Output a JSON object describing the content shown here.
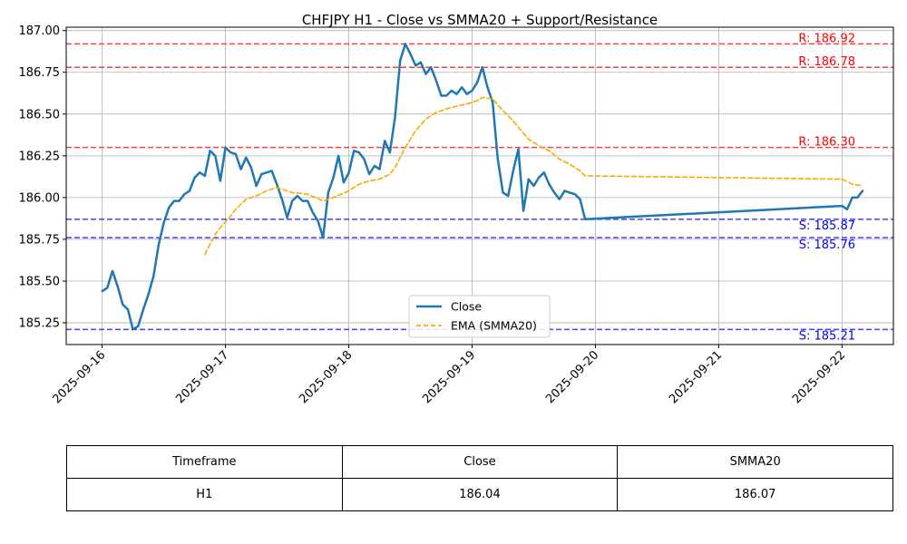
{
  "chart_data": {
    "type": "line",
    "title": "CHFJPY H1 - Close vs SMMA20 + Support/Resistance",
    "xlabel": "",
    "ylabel": "",
    "ylim": [
      185.12,
      187.02
    ],
    "xlim": [
      "2025-09-15T17:00",
      "2025-09-22T10:00"
    ],
    "x_ticks": [
      "2025-09-16",
      "2025-09-17",
      "2025-09-18",
      "2025-09-19",
      "2025-09-20",
      "2025-09-21",
      "2025-09-22"
    ],
    "y_ticks": [
      "185.25",
      "185.50",
      "185.75",
      "186.00",
      "186.25",
      "186.50",
      "186.75",
      "187.00"
    ],
    "grid": true,
    "legend_position": "lower-center",
    "series": [
      {
        "name": "Close",
        "color": "#1f77b4",
        "style": "solid",
        "points": [
          [
            "2025-09-16T00:00",
            185.44
          ],
          [
            "2025-09-16T01:00",
            185.46
          ],
          [
            "2025-09-16T02:00",
            185.56
          ],
          [
            "2025-09-16T03:00",
            185.47
          ],
          [
            "2025-09-16T04:00",
            185.36
          ],
          [
            "2025-09-16T05:00",
            185.33
          ],
          [
            "2025-09-16T06:00",
            185.21
          ],
          [
            "2025-09-16T07:00",
            185.23
          ],
          [
            "2025-09-16T08:00",
            185.33
          ],
          [
            "2025-09-16T09:00",
            185.42
          ],
          [
            "2025-09-16T10:00",
            185.53
          ],
          [
            "2025-09-16T11:00",
            185.72
          ],
          [
            "2025-09-16T12:00",
            185.85
          ],
          [
            "2025-09-16T13:00",
            185.94
          ],
          [
            "2025-09-16T14:00",
            185.98
          ],
          [
            "2025-09-16T15:00",
            185.98
          ],
          [
            "2025-09-16T16:00",
            186.02
          ],
          [
            "2025-09-16T17:00",
            186.04
          ],
          [
            "2025-09-16T18:00",
            186.12
          ],
          [
            "2025-09-16T19:00",
            186.15
          ],
          [
            "2025-09-16T20:00",
            186.13
          ],
          [
            "2025-09-16T21:00",
            186.28
          ],
          [
            "2025-09-16T22:00",
            186.25
          ],
          [
            "2025-09-16T23:00",
            186.1
          ],
          [
            "2025-09-17T00:00",
            186.3
          ],
          [
            "2025-09-17T01:00",
            186.27
          ],
          [
            "2025-09-17T02:00",
            186.26
          ],
          [
            "2025-09-17T03:00",
            186.17
          ],
          [
            "2025-09-17T04:00",
            186.24
          ],
          [
            "2025-09-17T05:00",
            186.18
          ],
          [
            "2025-09-17T06:00",
            186.07
          ],
          [
            "2025-09-17T07:00",
            186.14
          ],
          [
            "2025-09-17T08:00",
            186.15
          ],
          [
            "2025-09-17T09:00",
            186.16
          ],
          [
            "2025-09-17T10:00",
            186.08
          ],
          [
            "2025-09-17T11:00",
            185.99
          ],
          [
            "2025-09-17T12:00",
            185.88
          ],
          [
            "2025-09-17T13:00",
            185.98
          ],
          [
            "2025-09-17T14:00",
            186.01
          ],
          [
            "2025-09-17T15:00",
            185.98
          ],
          [
            "2025-09-17T16:00",
            185.98
          ],
          [
            "2025-09-17T17:00",
            185.91
          ],
          [
            "2025-09-17T18:00",
            185.86
          ],
          [
            "2025-09-17T19:00",
            185.76
          ],
          [
            "2025-09-17T20:00",
            186.03
          ],
          [
            "2025-09-17T21:00",
            186.12
          ],
          [
            "2025-09-17T22:00",
            186.25
          ],
          [
            "2025-09-17T23:00",
            186.09
          ],
          [
            "2025-09-18T00:00",
            186.15
          ],
          [
            "2025-09-18T01:00",
            186.28
          ],
          [
            "2025-09-18T02:00",
            186.27
          ],
          [
            "2025-09-18T03:00",
            186.23
          ],
          [
            "2025-09-18T04:00",
            186.14
          ],
          [
            "2025-09-18T05:00",
            186.19
          ],
          [
            "2025-09-18T06:00",
            186.17
          ],
          [
            "2025-09-18T07:00",
            186.34
          ],
          [
            "2025-09-18T08:00",
            186.27
          ],
          [
            "2025-09-18T09:00",
            186.48
          ],
          [
            "2025-09-18T10:00",
            186.82
          ],
          [
            "2025-09-18T11:00",
            186.92
          ],
          [
            "2025-09-18T12:00",
            186.86
          ],
          [
            "2025-09-18T13:00",
            186.79
          ],
          [
            "2025-09-18T14:00",
            186.81
          ],
          [
            "2025-09-18T15:00",
            186.74
          ],
          [
            "2025-09-18T16:00",
            186.78
          ],
          [
            "2025-09-18T17:00",
            186.7
          ],
          [
            "2025-09-18T18:00",
            186.61
          ],
          [
            "2025-09-18T19:00",
            186.61
          ],
          [
            "2025-09-18T20:00",
            186.64
          ],
          [
            "2025-09-18T21:00",
            186.62
          ],
          [
            "2025-09-18T22:00",
            186.66
          ],
          [
            "2025-09-18T23:00",
            186.62
          ],
          [
            "2025-09-19T00:00",
            186.64
          ],
          [
            "2025-09-19T01:00",
            186.69
          ],
          [
            "2025-09-19T02:00",
            186.78
          ],
          [
            "2025-09-19T03:00",
            186.66
          ],
          [
            "2025-09-19T04:00",
            186.57
          ],
          [
            "2025-09-19T05:00",
            186.23
          ],
          [
            "2025-09-19T06:00",
            186.03
          ],
          [
            "2025-09-19T07:00",
            186.01
          ],
          [
            "2025-09-19T08:00",
            186.16
          ],
          [
            "2025-09-19T09:00",
            186.29
          ],
          [
            "2025-09-19T10:00",
            185.92
          ],
          [
            "2025-09-19T11:00",
            186.11
          ],
          [
            "2025-09-19T12:00",
            186.07
          ],
          [
            "2025-09-19T13:00",
            186.12
          ],
          [
            "2025-09-19T14:00",
            186.15
          ],
          [
            "2025-09-19T15:00",
            186.08
          ],
          [
            "2025-09-19T16:00",
            186.03
          ],
          [
            "2025-09-19T17:00",
            185.99
          ],
          [
            "2025-09-19T18:00",
            186.04
          ],
          [
            "2025-09-19T19:00",
            186.03
          ],
          [
            "2025-09-19T20:00",
            186.02
          ],
          [
            "2025-09-19T21:00",
            185.99
          ],
          [
            "2025-09-19T22:00",
            185.87
          ],
          [
            "2025-09-22T00:00",
            185.95
          ],
          [
            "2025-09-22T01:00",
            185.93
          ],
          [
            "2025-09-22T02:00",
            186.0
          ],
          [
            "2025-09-22T03:00",
            186.0
          ],
          [
            "2025-09-22T04:00",
            186.04
          ]
        ]
      },
      {
        "name": "EMA (SMMA20)",
        "color": "#ffa500",
        "style": "dashed",
        "points": [
          [
            "2025-09-16T20:00",
            185.66
          ],
          [
            "2025-09-16T21:00",
            185.72
          ],
          [
            "2025-09-16T22:00",
            185.78
          ],
          [
            "2025-09-16T23:00",
            185.82
          ],
          [
            "2025-09-17T01:00",
            185.89
          ],
          [
            "2025-09-17T02:00",
            185.93
          ],
          [
            "2025-09-17T04:00",
            185.99
          ],
          [
            "2025-09-17T06:00",
            186.01
          ],
          [
            "2025-09-17T08:00",
            186.04
          ],
          [
            "2025-09-17T10:00",
            186.06
          ],
          [
            "2025-09-17T13:00",
            186.03
          ],
          [
            "2025-09-17T16:00",
            186.02
          ],
          [
            "2025-09-17T19:00",
            185.98
          ],
          [
            "2025-09-17T21:00",
            186.0
          ],
          [
            "2025-09-18T00:00",
            186.04
          ],
          [
            "2025-09-18T02:00",
            186.08
          ],
          [
            "2025-09-18T04:00",
            186.1
          ],
          [
            "2025-09-18T06:00",
            186.11
          ],
          [
            "2025-09-18T08:00",
            186.14
          ],
          [
            "2025-09-18T09:00",
            186.18
          ],
          [
            "2025-09-18T11:00",
            186.3
          ],
          [
            "2025-09-18T13:00",
            186.4
          ],
          [
            "2025-09-18T15:00",
            186.47
          ],
          [
            "2025-09-18T17:00",
            186.51
          ],
          [
            "2025-09-18T20:00",
            186.54
          ],
          [
            "2025-09-18T23:00",
            186.56
          ],
          [
            "2025-09-19T01:00",
            186.58
          ],
          [
            "2025-09-19T02:00",
            186.6
          ],
          [
            "2025-09-19T04:00",
            186.59
          ],
          [
            "2025-09-19T06:00",
            186.52
          ],
          [
            "2025-09-19T08:00",
            186.46
          ],
          [
            "2025-09-19T09:00",
            186.42
          ],
          [
            "2025-09-19T11:00",
            186.35
          ],
          [
            "2025-09-19T13:00",
            186.31
          ],
          [
            "2025-09-19T15:00",
            186.28
          ],
          [
            "2025-09-19T17:00",
            186.23
          ],
          [
            "2025-09-19T19:00",
            186.2
          ],
          [
            "2025-09-19T21:00",
            186.16
          ],
          [
            "2025-09-19T22:00",
            186.13
          ],
          [
            "2025-09-22T00:00",
            186.11
          ],
          [
            "2025-09-22T02:00",
            186.08
          ],
          [
            "2025-09-22T04:00",
            186.07
          ]
        ]
      }
    ],
    "levels": [
      {
        "kind": "resistance",
        "value": 186.92,
        "label": "R: 186.92",
        "color": "#ff0000"
      },
      {
        "kind": "resistance",
        "value": 186.78,
        "label": "R: 186.78",
        "color": "#ff0000"
      },
      {
        "kind": "resistance",
        "value": 186.3,
        "label": "R: 186.30",
        "color": "#ff0000"
      },
      {
        "kind": "support",
        "value": 185.87,
        "label": "S: 185.87",
        "color": "#0000ff"
      },
      {
        "kind": "support",
        "value": 185.76,
        "label": "S: 185.76",
        "color": "#0000ff"
      },
      {
        "kind": "support",
        "value": 185.21,
        "label": "S: 185.21",
        "color": "#0000ff"
      }
    ]
  },
  "table": {
    "headers": [
      "Timeframe",
      "Close",
      "SMMA20"
    ],
    "row": [
      "H1",
      "186.04",
      "186.07"
    ]
  }
}
